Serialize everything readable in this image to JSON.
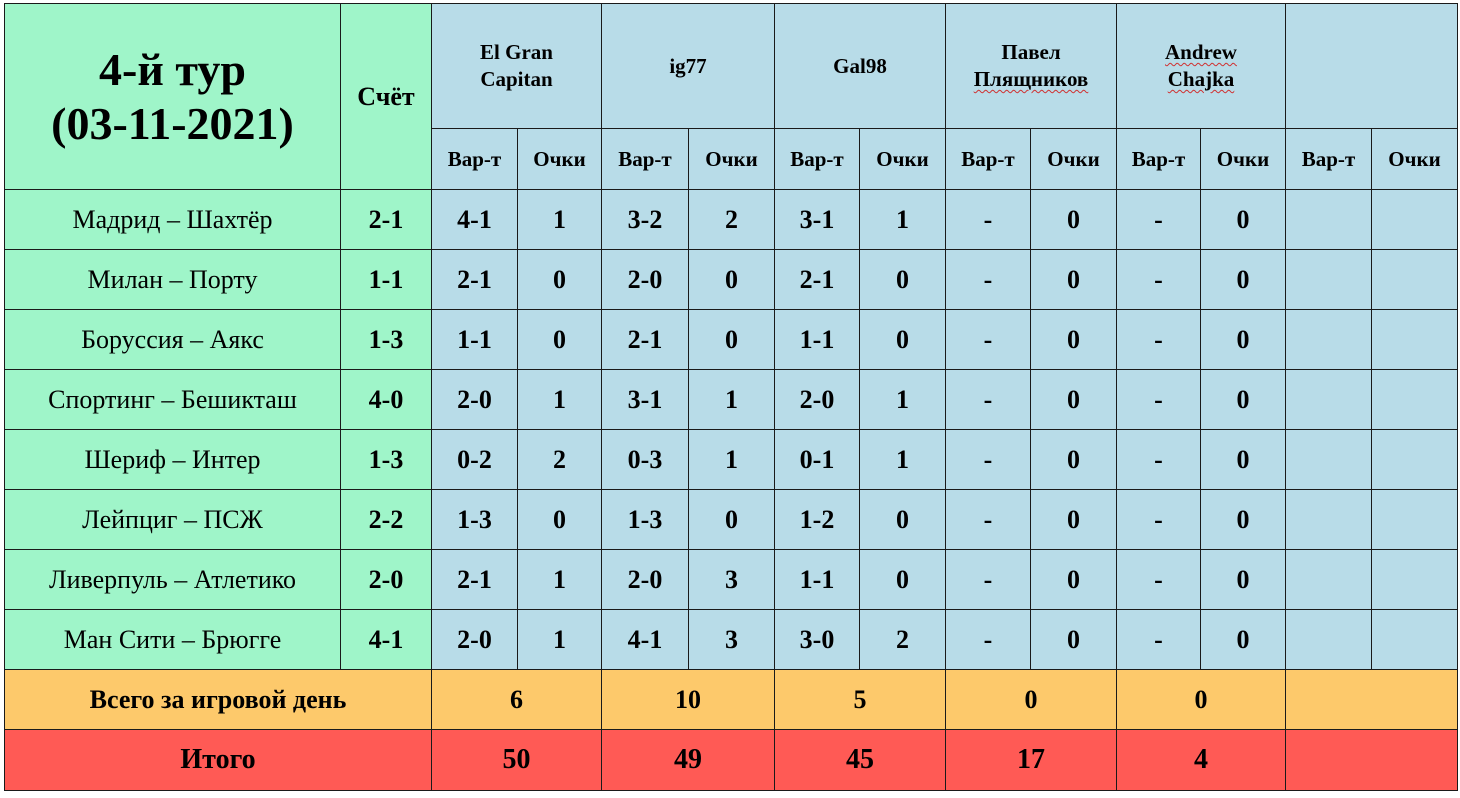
{
  "title_line1": "4-й тур",
  "title_line2": "(03-11-2021)",
  "score_header": "Счёт",
  "players": [
    {
      "line1": "El Gran",
      "line2": "Capitan"
    },
    {
      "line1": "ig77",
      "line2": ""
    },
    {
      "line1": "Gal98",
      "line2": ""
    },
    {
      "line1": "Павел",
      "line2": "Плящников"
    },
    {
      "line1": "Andrew",
      "line2": "Chajka"
    },
    {
      "line1": "",
      "line2": ""
    }
  ],
  "sub_headers": {
    "prediction": "Вар-т",
    "points": "Очки"
  },
  "matches": [
    {
      "teams": "Мадрид – Шахтёр",
      "score": "2-1",
      "preds": [
        "4-1",
        "3-2",
        "3-1",
        "-",
        "-",
        ""
      ],
      "points": [
        "1",
        "2",
        "1",
        "0",
        "0",
        ""
      ]
    },
    {
      "teams": "Милан – Порту",
      "score": "1-1",
      "preds": [
        "2-1",
        "2-0",
        "2-1",
        "-",
        "-",
        ""
      ],
      "points": [
        "0",
        "0",
        "0",
        "0",
        "0",
        ""
      ]
    },
    {
      "teams": "Боруссия – Аякс",
      "score": "1-3",
      "preds": [
        "1-1",
        "2-1",
        "1-1",
        "-",
        "-",
        ""
      ],
      "points": [
        "0",
        "0",
        "0",
        "0",
        "0",
        ""
      ]
    },
    {
      "teams": "Спортинг – Бешикташ",
      "score": "4-0",
      "preds": [
        "2-0",
        "3-1",
        "2-0",
        "-",
        "-",
        ""
      ],
      "points": [
        "1",
        "1",
        "1",
        "0",
        "0",
        ""
      ]
    },
    {
      "teams": "Шериф – Интер",
      "score": "1-3",
      "preds": [
        "0-2",
        "0-3",
        "0-1",
        "-",
        "-",
        ""
      ],
      "points": [
        "2",
        "1",
        "1",
        "0",
        "0",
        ""
      ]
    },
    {
      "teams": "Лейпциг – ПСЖ",
      "score": "2-2",
      "preds": [
        "1-3",
        "1-3",
        "1-2",
        "-",
        "-",
        ""
      ],
      "points": [
        "0",
        "0",
        "0",
        "0",
        "0",
        ""
      ]
    },
    {
      "teams": "Ливерпуль – Атлетико",
      "score": "2-0",
      "preds": [
        "2-1",
        "2-0",
        "1-1",
        "-",
        "-",
        ""
      ],
      "points": [
        "1",
        "3",
        "0",
        "0",
        "0",
        ""
      ]
    },
    {
      "teams": "Ман Сити – Брюгге",
      "score": "4-1",
      "preds": [
        "2-0",
        "4-1",
        "3-0",
        "-",
        "-",
        ""
      ],
      "points": [
        "1",
        "3",
        "2",
        "0",
        "0",
        ""
      ]
    }
  ],
  "day_total": {
    "label": "Всего за игровой день",
    "values": [
      "6",
      "10",
      "5",
      "0",
      "0",
      ""
    ]
  },
  "grand_total": {
    "label": "Итого",
    "values": [
      "50",
      "49",
      "45",
      "17",
      "4",
      ""
    ]
  }
}
